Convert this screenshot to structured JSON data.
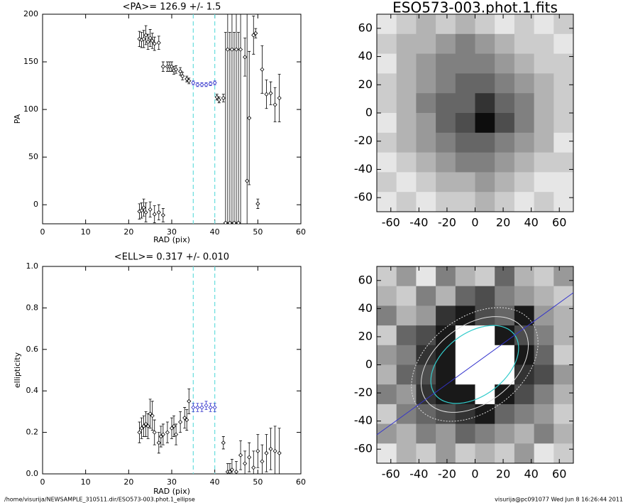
{
  "chart_data": [
    {
      "type": "scatter",
      "title": "<PA>= 126.9 +/-   1.5",
      "xlabel": "RAD (pix)",
      "ylabel": "PA",
      "xlim": [
        0,
        60
      ],
      "xticks": [
        0,
        10,
        20,
        30,
        40,
        50,
        60
      ],
      "ylim": [
        -20,
        200
      ],
      "yticks": [
        0,
        50,
        100,
        150,
        200
      ],
      "vlines": [
        35,
        40
      ],
      "vline_color": "#66dddd",
      "series": [
        {
          "color": "#000000",
          "x": [
            22.5,
            23,
            23.5,
            24,
            24.5,
            25,
            25.5,
            26,
            27,
            28,
            29,
            29.5,
            30,
            30.5,
            31,
            32,
            32.5,
            33.5,
            34,
            40.5,
            41,
            42,
            43,
            44,
            45,
            46,
            47,
            47.5,
            48,
            49,
            49.5,
            50,
            51,
            52,
            53,
            54,
            55,
            22.5,
            23,
            23.5,
            24,
            25,
            26,
            27,
            28,
            42.5,
            43.5,
            44.5,
            45.5
          ],
          "values": [
            174,
            173,
            174,
            178,
            171,
            175,
            172,
            169,
            170,
            145,
            145,
            145,
            145,
            141,
            142,
            140,
            135,
            132,
            130,
            113,
            110,
            112,
            163,
            163,
            163,
            163,
            155,
            25,
            91,
            178,
            180,
            1,
            142,
            116,
            117,
            105,
            112,
            -7,
            -6,
            -3,
            -8,
            -5,
            -10,
            -8,
            -11,
            -19,
            -19,
            -19,
            -19
          ],
          "errors": [
            8,
            8,
            9,
            10,
            8,
            9,
            8,
            7,
            7,
            5,
            5,
            5,
            5,
            4,
            4,
            4,
            4,
            3,
            3,
            3,
            3,
            4,
            200,
            200,
            200,
            200,
            20,
            200,
            70,
            20,
            5,
            5,
            25,
            15,
            12,
            18,
            25,
            8,
            8,
            9,
            10,
            8,
            9,
            8,
            7,
            200,
            200,
            200,
            200
          ]
        },
        {
          "color": "#3333cc",
          "x": [
            35,
            36,
            37,
            38,
            39,
            40
          ],
          "values": [
            128,
            126,
            126,
            126,
            127,
            128
          ],
          "errors": [
            2,
            2,
            2,
            2,
            2,
            2
          ]
        }
      ]
    },
    {
      "type": "scatter",
      "title": "<ELL>= 0.317 +/-  0.010",
      "xlabel": "RAD (pix)",
      "ylabel": "ellipticity",
      "xlim": [
        0,
        60
      ],
      "xticks": [
        0,
        10,
        20,
        30,
        40,
        50,
        60
      ],
      "ylim": [
        0,
        1
      ],
      "yticks": [
        {
          "value": 0,
          "label": "0.0"
        },
        0.2,
        0.4,
        0.6,
        0.8,
        {
          "value": 1,
          "label": "1.0"
        }
      ],
      "vlines": [
        35,
        40
      ],
      "vline_color": "#66dddd",
      "series": [
        {
          "color": "#000000",
          "x": [
            22.5,
            23,
            23.5,
            24,
            24.5,
            25,
            25.5,
            26,
            27,
            27.5,
            28,
            29,
            30,
            30.5,
            31,
            32,
            33,
            33.5,
            34,
            42,
            43,
            43.5,
            44,
            45,
            46,
            47,
            48,
            49,
            50,
            51,
            52,
            53,
            54,
            55
          ],
          "values": [
            0.2,
            0.22,
            0.23,
            0.24,
            0.23,
            0.29,
            0.28,
            0.2,
            0.15,
            0.18,
            0.19,
            0.2,
            0.22,
            0.23,
            0.19,
            0.25,
            0.27,
            0.26,
            0.35,
            0.15,
            0.01,
            0.01,
            0.02,
            0.01,
            0.09,
            0.05,
            0.08,
            0.03,
            0.11,
            0.06,
            0.1,
            0.12,
            0.11,
            0.1
          ],
          "errors": [
            0.05,
            0.05,
            0.05,
            0.06,
            0.06,
            0.07,
            0.07,
            0.06,
            0.05,
            0.05,
            0.05,
            0.05,
            0.05,
            0.05,
            0.05,
            0.05,
            0.05,
            0.05,
            0.06,
            0.03,
            0.04,
            0.04,
            0.05,
            0.05,
            0.07,
            0.06,
            0.07,
            0.08,
            0.08,
            0.08,
            0.09,
            0.1,
            0.12,
            0.12
          ]
        },
        {
          "color": "#3333cc",
          "x": [
            35,
            36,
            37,
            38,
            39,
            40
          ],
          "values": [
            0.32,
            0.32,
            0.32,
            0.33,
            0.32,
            0.32
          ],
          "errors": [
            0.02,
            0.02,
            0.02,
            0.02,
            0.02,
            0.02
          ]
        }
      ]
    },
    {
      "type": "image",
      "title": "ESO573-003.phot.1.fits",
      "xlim": [
        -70,
        70
      ],
      "ylim": [
        -70,
        70
      ],
      "xticks": [
        -60,
        -40,
        -20,
        0,
        20,
        40,
        60
      ],
      "yticks": [
        -60,
        -40,
        -20,
        0,
        20,
        40,
        60
      ],
      "pixels": [
        [
          0.1,
          0.2,
          0.3,
          0.2,
          0.3,
          0.2,
          0.1,
          0.2,
          0.1,
          0.2
        ],
        [
          0.2,
          0.3,
          0.3,
          0.4,
          0.5,
          0.4,
          0.3,
          0.2,
          0.2,
          0.1
        ],
        [
          0.1,
          0.3,
          0.4,
          0.5,
          0.5,
          0.5,
          0.4,
          0.3,
          0.2,
          0.2
        ],
        [
          0.2,
          0.3,
          0.4,
          0.5,
          0.6,
          0.6,
          0.5,
          0.4,
          0.3,
          0.2
        ],
        [
          0.2,
          0.3,
          0.5,
          0.6,
          0.6,
          0.8,
          0.6,
          0.5,
          0.3,
          0.2
        ],
        [
          0.1,
          0.3,
          0.4,
          0.6,
          0.7,
          0.95,
          0.7,
          0.5,
          0.3,
          0.2
        ],
        [
          0.2,
          0.3,
          0.4,
          0.5,
          0.6,
          0.6,
          0.5,
          0.4,
          0.3,
          0.1
        ],
        [
          0.1,
          0.2,
          0.3,
          0.4,
          0.5,
          0.5,
          0.4,
          0.3,
          0.2,
          0.2
        ],
        [
          0.2,
          0.1,
          0.2,
          0.3,
          0.3,
          0.4,
          0.3,
          0.2,
          0.1,
          0.1
        ],
        [
          0.1,
          0.2,
          0.1,
          0.2,
          0.2,
          0.3,
          0.2,
          0.1,
          0.2,
          0.1
        ]
      ]
    },
    {
      "type": "image",
      "xlim": [
        -70,
        70
      ],
      "ylim": [
        -70,
        70
      ],
      "xticks": [
        -60,
        -40,
        -20,
        0,
        20,
        40,
        60
      ],
      "yticks": [
        -60,
        -40,
        -20,
        0,
        20,
        40,
        60
      ],
      "pixels": [
        [
          0.2,
          0.4,
          0.1,
          0.5,
          0.3,
          0.2,
          0.6,
          0.3,
          0.2,
          0.4
        ],
        [
          0.3,
          0.2,
          0.5,
          0.3,
          0.6,
          0.7,
          0.5,
          0.4,
          0.3,
          0.2
        ],
        [
          0.5,
          0.3,
          0.4,
          0.8,
          0.9,
          0.7,
          0.6,
          0.9,
          0.4,
          0.3
        ],
        [
          0.2,
          0.6,
          0.7,
          0.9,
          0,
          0,
          0.9,
          0.7,
          0.5,
          0.3
        ],
        [
          0.4,
          0.5,
          0.8,
          0.9,
          0,
          0,
          0,
          0.9,
          0.6,
          0.2
        ],
        [
          0.3,
          0.6,
          0.7,
          0.9,
          0,
          0,
          0,
          0.8,
          0.7,
          0.4
        ],
        [
          0.5,
          0.4,
          0.8,
          0.9,
          0.9,
          0,
          0.9,
          0.7,
          0.5,
          0.3
        ],
        [
          0.2,
          0.5,
          0.6,
          0.7,
          0.8,
          0.9,
          0.6,
          0.5,
          0.4,
          0.2
        ],
        [
          0.4,
          0.3,
          0.5,
          0.4,
          0.6,
          0.5,
          0.4,
          0.3,
          0.5,
          0.3
        ],
        [
          0.1,
          0.3,
          0.2,
          0.4,
          0.2,
          0.3,
          0.2,
          0.4,
          0.1,
          0.2
        ]
      ]
    }
  ],
  "footer": {
    "left": "/home/visurija/NEWSAMPLE_310511.dir/ESO573-003.phot.1_ellipse",
    "right": "visurija@pc091077  Wed Jun  8 16:26:44 2011"
  }
}
